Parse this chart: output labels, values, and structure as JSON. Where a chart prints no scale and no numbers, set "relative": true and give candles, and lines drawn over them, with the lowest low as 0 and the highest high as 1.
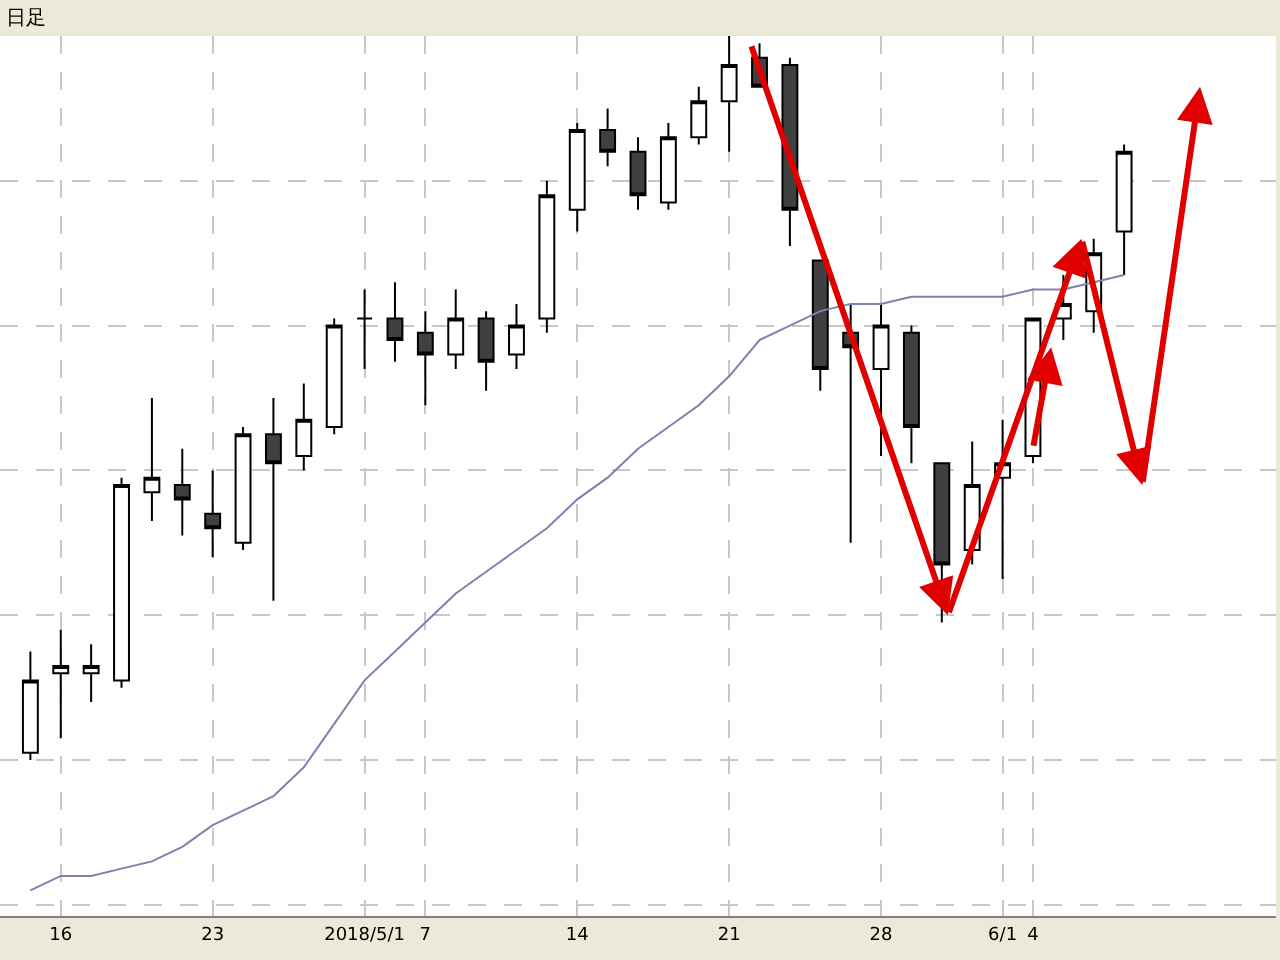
{
  "chart_data": {
    "type": "candlestick",
    "title": "日足",
    "relative": true,
    "grid": true,
    "categories": [
      null,
      "16",
      null,
      null,
      null,
      null,
      "23",
      null,
      null,
      null,
      null,
      "2018/5/1",
      null,
      "7",
      null,
      null,
      null,
      null,
      "14",
      null,
      null,
      null,
      null,
      "21",
      null,
      null,
      null,
      null,
      "28",
      null,
      null,
      null,
      "6/1",
      "4",
      null,
      null,
      null
    ],
    "ohlc": [
      [
        0.01,
        0.15,
        0,
        0.11
      ],
      [
        0.12,
        0.18,
        0.03,
        0.13
      ],
      [
        0.12,
        0.16,
        0.08,
        0.13
      ],
      [
        0.11,
        0.39,
        0.1,
        0.38
      ],
      [
        0.37,
        0.5,
        0.33,
        0.39
      ],
      [
        0.38,
        0.43,
        0.31,
        0.36
      ],
      [
        0.34,
        0.4,
        0.28,
        0.32
      ],
      [
        0.3,
        0.46,
        0.29,
        0.45
      ],
      [
        0.45,
        0.5,
        0.22,
        0.41
      ],
      [
        0.42,
        0.52,
        0.4,
        0.47
      ],
      [
        0.46,
        0.61,
        0.45,
        0.6
      ],
      [
        0.61,
        0.65,
        0.54,
        0.61
      ],
      [
        0.61,
        0.66,
        0.55,
        0.58
      ],
      [
        0.59,
        0.62,
        0.49,
        0.56
      ],
      [
        0.56,
        0.65,
        0.54,
        0.61
      ],
      [
        0.61,
        0.62,
        0.51,
        0.55
      ],
      [
        0.56,
        0.63,
        0.54,
        0.6
      ],
      [
        0.61,
        0.8,
        0.59,
        0.78
      ],
      [
        0.76,
        0.88,
        0.73,
        0.87
      ],
      [
        0.87,
        0.9,
        0.82,
        0.84
      ],
      [
        0.84,
        0.86,
        0.76,
        0.78
      ],
      [
        0.77,
        0.88,
        0.76,
        0.86
      ],
      [
        0.86,
        0.93,
        0.85,
        0.91
      ],
      [
        0.91,
        1.0,
        0.84,
        0.96
      ],
      [
        0.97,
        0.99,
        0.93,
        0.93
      ],
      [
        0.96,
        0.97,
        0.71,
        0.76
      ],
      [
        0.69,
        0.69,
        0.51,
        0.54
      ],
      [
        0.59,
        0.63,
        0.3,
        0.57
      ],
      [
        0.54,
        0.63,
        0.42,
        0.6
      ],
      [
        0.59,
        0.6,
        0.41,
        0.46
      ],
      [
        0.41,
        0.41,
        0.19,
        0.27
      ],
      [
        0.29,
        0.44,
        0.27,
        0.38
      ],
      [
        0.39,
        0.47,
        0.25,
        0.41
      ],
      [
        0.42,
        0.61,
        0.41,
        0.61
      ],
      [
        0.61,
        0.67,
        0.58,
        0.63
      ],
      [
        0.62,
        0.72,
        0.59,
        0.7
      ],
      [
        0.73,
        0.85,
        0.67,
        0.84
      ]
    ],
    "colors": [
      "#ffffff",
      "#ffffff",
      "#ffffff",
      "#ffffff",
      "#ffffff",
      "#404040",
      "#404040",
      "#ffffff",
      "#404040",
      "#ffffff",
      "#ffffff",
      "#000000",
      "#404040",
      "#404040",
      "#ffffff",
      "#404040",
      "#ffffff",
      "#ffffff",
      "#ffffff",
      "#404040",
      "#404040",
      "#ffffff",
      "#ffffff",
      "#ffffff",
      "#404040",
      "#404040",
      "#404040",
      "#404040",
      "#ffffff",
      "#404040",
      "#404040",
      "#ffffff",
      "#ffffff",
      "#ffffff",
      "#ffffff",
      "#ffffff",
      "#ffffff"
    ],
    "series": [
      {
        "type": "line",
        "color": "#8080b0",
        "marker": "none",
        "line_style": "solid",
        "values": [
          -0.18,
          -0.16,
          -0.16,
          -0.15,
          -0.14,
          -0.12,
          -0.09,
          -0.07,
          -0.05,
          -0.01,
          0.05,
          0.11,
          0.15,
          0.19,
          0.23,
          0.26,
          0.29,
          0.32,
          0.36,
          0.39,
          0.43,
          0.46,
          0.49,
          0.53,
          0.58,
          0.6,
          0.62,
          0.63,
          0.63,
          0.64,
          0.64,
          0.64,
          0.64,
          0.65,
          0.65,
          0.66,
          0.67
        ]
      }
    ]
  }
}
